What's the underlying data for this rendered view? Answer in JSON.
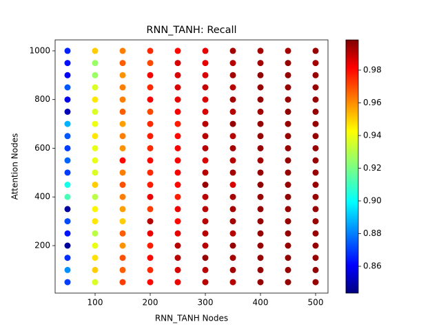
{
  "chart_data": {
    "type": "scatter",
    "title": "RNN_TANH: Recall",
    "xlabel": "RNN_TANH Nodes",
    "ylabel": "Attention Nodes",
    "colormap": "jet",
    "x": [
      50,
      100,
      150,
      200,
      250,
      300,
      350,
      400,
      450,
      500
    ],
    "y": [
      50,
      100,
      150,
      200,
      250,
      300,
      350,
      400,
      450,
      500,
      550,
      600,
      650,
      700,
      750,
      800,
      850,
      900,
      950,
      1000
    ],
    "values": [
      [
        0.872,
        0.885,
        0.87,
        0.848,
        0.866,
        0.874,
        0.848,
        0.913,
        0.905,
        0.872,
        0.878,
        0.872,
        0.876,
        0.89,
        0.852,
        0.86,
        0.876,
        0.862,
        0.865,
        0.868
      ],
      [
        0.935,
        0.948,
        0.945,
        0.937,
        0.93,
        0.944,
        0.942,
        0.93,
        0.948,
        0.935,
        0.937,
        0.937,
        0.944,
        0.938,
        0.935,
        0.944,
        0.935,
        0.925,
        0.925,
        0.948
      ],
      [
        0.97,
        0.965,
        0.967,
        0.957,
        0.965,
        0.948,
        0.955,
        0.96,
        0.967,
        0.96,
        0.978,
        0.957,
        0.96,
        0.955,
        0.965,
        0.96,
        0.96,
        0.957,
        0.965,
        0.96
      ],
      [
        0.978,
        0.973,
        0.978,
        0.975,
        0.982,
        0.99,
        0.97,
        0.982,
        0.975,
        0.973,
        0.978,
        0.973,
        0.975,
        0.973,
        0.968,
        0.98,
        0.973,
        0.98,
        0.968,
        0.973
      ],
      [
        0.982,
        0.985,
        0.99,
        0.99,
        0.983,
        0.978,
        0.982,
        0.975,
        0.978,
        0.98,
        0.98,
        0.98,
        0.978,
        0.975,
        0.98,
        0.983,
        0.985,
        0.985,
        0.985,
        0.978
      ],
      [
        0.99,
        0.99,
        0.995,
        0.99,
        0.99,
        0.99,
        0.99,
        0.99,
        0.995,
        0.99,
        0.985,
        0.99,
        0.99,
        0.99,
        0.985,
        0.985,
        0.988,
        0.985,
        0.983,
        0.983
      ],
      [
        0.99,
        0.993,
        0.993,
        0.995,
        0.99,
        0.993,
        0.993,
        0.993,
        0.985,
        0.993,
        0.99,
        0.993,
        0.99,
        0.995,
        0.99,
        0.993,
        0.99,
        0.993,
        0.99,
        0.993
      ],
      [
        0.995,
        0.995,
        0.995,
        0.995,
        0.995,
        0.995,
        0.995,
        0.995,
        0.996,
        0.995,
        0.993,
        0.995,
        0.995,
        0.995,
        0.993,
        0.995,
        0.995,
        0.996,
        0.993,
        0.993
      ],
      [
        0.995,
        0.995,
        0.996,
        0.995,
        0.995,
        0.995,
        0.995,
        0.996,
        0.995,
        0.995,
        0.995,
        0.995,
        0.995,
        0.995,
        0.996,
        0.995,
        0.995,
        0.995,
        0.995,
        0.993
      ],
      [
        0.995,
        0.996,
        0.995,
        0.995,
        0.995,
        0.995,
        0.995,
        0.995,
        0.995,
        0.995,
        0.995,
        0.995,
        0.995,
        0.995,
        0.995,
        0.995,
        0.995,
        0.995,
        0.993,
        0.995
      ]
    ],
    "xlim": [
      27.5,
      522.5
    ],
    "xticks": [
      100,
      200,
      300,
      400,
      500
    ],
    "ylim": [
      5,
      1045
    ],
    "yticks": [
      200,
      400,
      600,
      800,
      1000
    ],
    "clim": [
      0.8436,
      0.9985
    ],
    "cticks": [
      0.86,
      0.88,
      {
        "value": 0.9,
        "label": "0.90"
      },
      0.92,
      0.94,
      0.96,
      0.98
    ]
  }
}
